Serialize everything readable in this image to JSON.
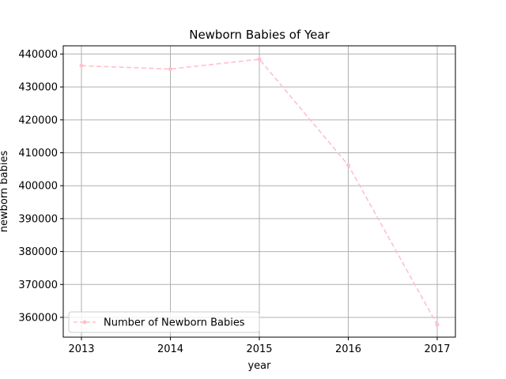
{
  "chart_data": {
    "type": "line",
    "title": "Newborn Babies of Year",
    "xlabel": "year",
    "ylabel": "newborn babies",
    "categories": [
      "2013",
      "2014",
      "2015",
      "2016",
      "2017"
    ],
    "series": [
      {
        "name": "Number of Newborn Babies",
        "values": [
          436455,
          435435,
          438420,
          406243,
          357771
        ],
        "color": "#ffc0cb",
        "line_style": "dashed",
        "marker": "point"
      }
    ],
    "ylim": [
      354000,
      442500
    ],
    "yticks": [
      360000,
      370000,
      380000,
      390000,
      400000,
      410000,
      420000,
      430000,
      440000
    ],
    "grid": true,
    "legend_position": "lower-left"
  }
}
